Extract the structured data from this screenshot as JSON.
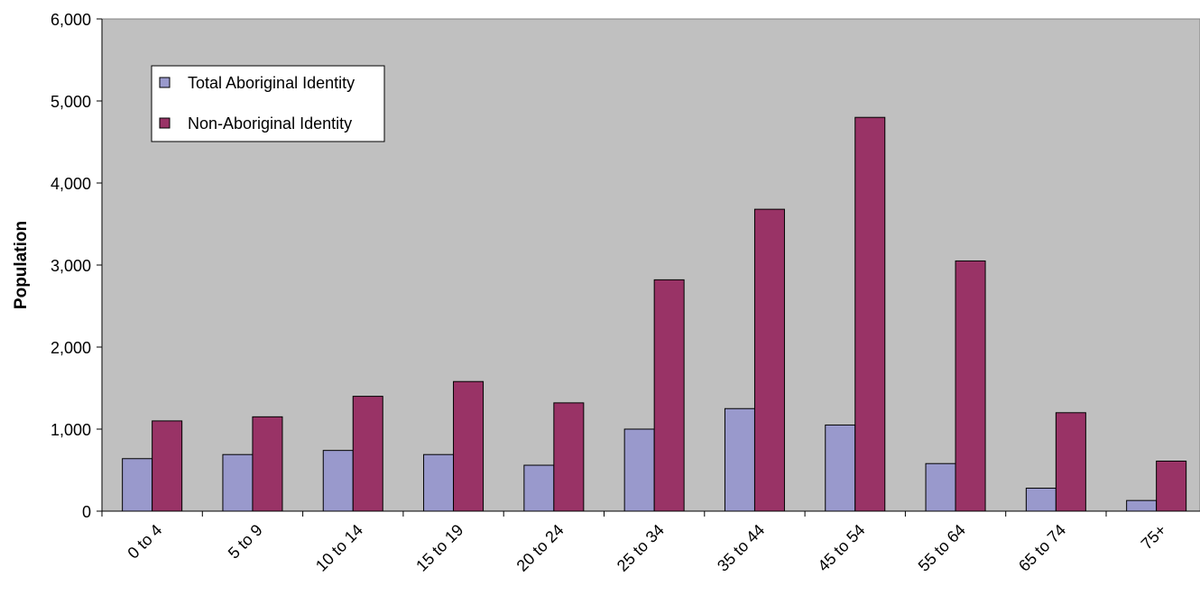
{
  "chart_data": {
    "type": "bar",
    "title": "",
    "xlabel": "",
    "ylabel": "Population",
    "ylim": [
      0,
      6000
    ],
    "yticks": [
      0,
      1000,
      2000,
      3000,
      4000,
      5000,
      6000
    ],
    "ytick_labels": [
      "0",
      "1,000",
      "2,000",
      "3,000",
      "4,000",
      "5,000",
      "6,000"
    ],
    "grid": false,
    "legend_position": "top-left",
    "categories": [
      "0 to 4",
      "5 to 9",
      "10 to 14",
      "15 to 19",
      "20 to 24",
      "25 to 34",
      "35 to 44",
      "45 to 54",
      "55 to 64",
      "65 to 74",
      "75+"
    ],
    "series": [
      {
        "name": "Total Aboriginal Identity",
        "color": "#9999cc",
        "values": [
          640,
          690,
          740,
          690,
          560,
          1000,
          1250,
          1050,
          580,
          280,
          130
        ]
      },
      {
        "name": "Non-Aboriginal Identity",
        "color": "#993366",
        "values": [
          1100,
          1150,
          1400,
          1580,
          1320,
          2820,
          3680,
          4800,
          3050,
          1200,
          610
        ]
      }
    ],
    "plot_background": "#c0c0c0"
  }
}
